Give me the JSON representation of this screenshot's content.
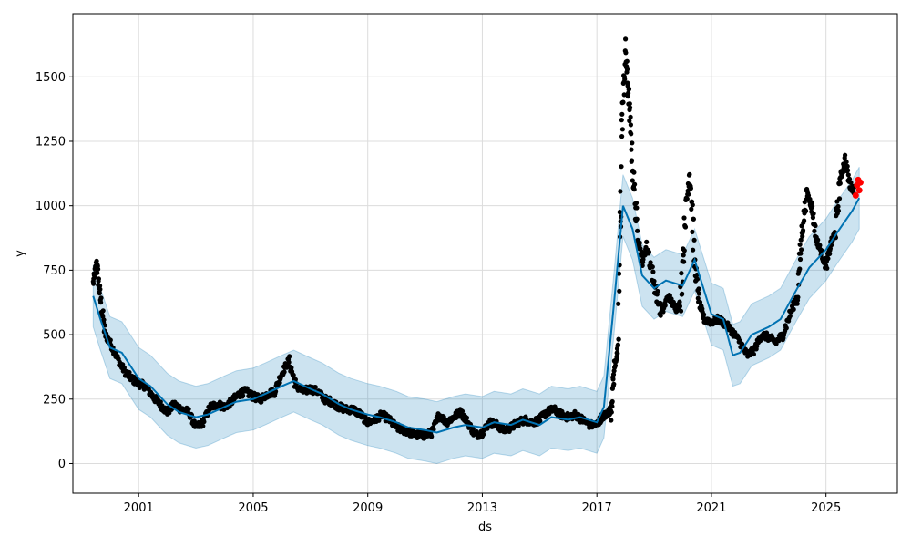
{
  "chart_data": {
    "type": "line",
    "title": "",
    "xlabel": "ds",
    "ylabel": "y",
    "xlim": [
      "1998-09-15",
      "2027-06-30"
    ],
    "ylim": [
      -115,
      1745
    ],
    "grid": true,
    "x_ticks": [
      {
        "date": "2001-01-01",
        "label": "2001"
      },
      {
        "date": "2005-01-01",
        "label": "2005"
      },
      {
        "date": "2009-01-01",
        "label": "2009"
      },
      {
        "date": "2013-01-01",
        "label": "2013"
      },
      {
        "date": "2017-01-01",
        "label": "2017"
      },
      {
        "date": "2021-01-01",
        "label": "2021"
      },
      {
        "date": "2025-01-01",
        "label": "2025"
      }
    ],
    "y_ticks": [
      0,
      250,
      500,
      750,
      1000,
      1250,
      1500
    ],
    "colors": {
      "observed": "#000000",
      "forecast_line": "#0072b2",
      "uncertainty_band": "#0072b2",
      "highlight": "#ff0000",
      "grid": "#dcdcdc"
    },
    "series": [
      {
        "kind": "forecast",
        "x": [
          "1999-06-01",
          "1999-09-01",
          "2000-01-01",
          "2000-06-01",
          "2001-01-01",
          "2001-06-01",
          "2002-01-01",
          "2002-06-01",
          "2003-01-01",
          "2003-06-01",
          "2004-01-01",
          "2004-06-01",
          "2005-01-01",
          "2005-06-01",
          "2006-01-01",
          "2006-06-01",
          "2007-01-01",
          "2007-06-01",
          "2008-01-01",
          "2008-06-01",
          "2009-01-01",
          "2009-06-01",
          "2010-01-01",
          "2010-06-01",
          "2011-01-01",
          "2011-06-01",
          "2012-01-01",
          "2012-06-01",
          "2013-01-01",
          "2013-06-01",
          "2014-01-01",
          "2014-06-01",
          "2015-01-01",
          "2015-06-01",
          "2016-01-01",
          "2016-06-01",
          "2017-01-01",
          "2017-04-01",
          "2017-08-01",
          "2017-12-01",
          "2018-04-01",
          "2018-08-01",
          "2019-01-01",
          "2019-06-01",
          "2020-01-01",
          "2020-06-01",
          "2020-09-01",
          "2021-01-01",
          "2021-06-01",
          "2021-10-01",
          "2022-01-01",
          "2022-06-01",
          "2023-01-01",
          "2023-06-01",
          "2024-01-01",
          "2024-06-01",
          "2025-01-01",
          "2025-06-01",
          "2025-12-01",
          "2026-03-01"
        ],
        "values": [
          650,
          560,
          450,
          430,
          330,
          300,
          230,
          200,
          180,
          190,
          220,
          240,
          250,
          270,
          300,
          320,
          290,
          270,
          230,
          210,
          190,
          180,
          160,
          140,
          130,
          120,
          140,
          150,
          140,
          160,
          150,
          170,
          150,
          180,
          170,
          180,
          160,
          220,
          600,
          1000,
          910,
          730,
          680,
          710,
          690,
          790,
          700,
          580,
          560,
          420,
          430,
          500,
          530,
          560,
          680,
          760,
          830,
          900,
          980,
          1030
        ]
      }
    ],
    "uncertainty_band_halfwidth": 120,
    "observed_segments": [
      {
        "x": [
          "1999-06-01",
          "1999-07-15",
          "1999-09-01",
          "1999-11-01",
          "2000-01-01",
          "2000-04-01",
          "2000-07-01",
          "2000-10-01",
          "2001-01-01",
          "2001-04-01",
          "2001-07-01",
          "2001-10-01",
          "2002-01-01",
          "2002-04-01",
          "2002-07-01",
          "2002-10-01",
          "2003-01-01",
          "2003-04-01",
          "2003-07-01",
          "2003-10-01",
          "2004-01-01",
          "2004-04-01",
          "2004-07-01",
          "2004-10-01",
          "2005-01-01",
          "2005-04-01",
          "2005-07-01",
          "2005-10-01",
          "2006-01-01",
          "2006-04-01",
          "2006-07-01",
          "2006-10-01",
          "2007-01-01",
          "2007-04-01",
          "2007-07-01",
          "2007-10-01",
          "2008-01-01",
          "2008-04-01",
          "2008-07-01",
          "2008-10-01",
          "2009-01-01",
          "2009-04-01",
          "2009-07-01",
          "2009-10-01",
          "2010-01-01",
          "2010-04-01",
          "2010-07-01",
          "2010-10-01",
          "2011-01-01",
          "2011-04-01",
          "2011-07-01",
          "2011-10-01",
          "2012-01-01",
          "2012-04-01",
          "2012-07-01",
          "2012-10-01",
          "2013-01-01",
          "2013-04-01",
          "2013-07-01",
          "2013-10-01",
          "2014-01-01",
          "2014-04-01",
          "2014-07-01",
          "2014-10-01",
          "2015-01-01",
          "2015-04-01",
          "2015-07-01",
          "2015-10-01",
          "2016-01-01",
          "2016-04-01",
          "2016-07-01",
          "2016-10-01",
          "2017-01-01",
          "2017-03-01",
          "2017-05-01",
          "2017-07-01",
          "2017-08-15",
          "2017-10-01",
          "2017-11-15",
          "2018-01-01",
          "2018-02-15",
          "2018-04-01",
          "2018-06-01",
          "2018-08-01",
          "2018-10-01",
          "2019-01-01",
          "2019-04-01",
          "2019-07-01",
          "2019-10-01",
          "2019-12-01",
          "2020-02-01",
          "2020-04-01",
          "2020-06-01",
          "2020-08-01",
          "2020-10-01",
          "2021-01-01",
          "2021-04-01",
          "2021-07-01",
          "2021-10-01",
          "2022-01-01",
          "2022-04-01",
          "2022-07-01",
          "2022-10-01",
          "2023-01-01",
          "2023-04-01",
          "2023-07-01",
          "2023-10-01",
          "2024-01-01",
          "2024-03-01",
          "2024-05-01",
          "2024-07-01",
          "2024-09-01",
          "2024-11-01",
          "2025-01-01",
          "2025-03-01",
          "2025-05-01",
          "2025-07-01",
          "2025-09-01",
          "2025-11-01",
          "2026-01-01"
        ],
        "values": [
          700,
          780,
          640,
          500,
          470,
          410,
          360,
          330,
          310,
          300,
          260,
          230,
          200,
          230,
          210,
          200,
          140,
          160,
          220,
          230,
          220,
          240,
          270,
          280,
          260,
          250,
          270,
          280,
          350,
          400,
          300,
          280,
          290,
          280,
          250,
          240,
          220,
          210,
          210,
          190,
          160,
          170,
          190,
          170,
          140,
          130,
          120,
          110,
          110,
          120,
          190,
          160,
          180,
          200,
          160,
          110,
          120,
          160,
          150,
          130,
          140,
          160,
          170,
          160,
          170,
          200,
          210,
          190,
          180,
          190,
          170,
          150,
          150,
          180,
          190,
          210,
          380,
          450,
          1300,
          1600,
          1400,
          1150,
          900,
          780,
          850,
          700,
          580,
          650,
          600,
          620,
          950,
          1150,
          780,
          620,
          560,
          550,
          560,
          540,
          510,
          470,
          420,
          440,
          500,
          490,
          470,
          500,
          580,
          650,
          900,
          1050,
          1000,
          870,
          820,
          760,
          850,
          900,
          1100,
          1180,
          1080,
          1060
        ]
      }
    ],
    "highlighted_points": {
      "x": [
        "2026-01-15",
        "2026-02-01",
        "2026-02-15",
        "2026-03-01",
        "2026-03-15"
      ],
      "values": [
        1040,
        1080,
        1100,
        1060,
        1090
      ]
    }
  }
}
